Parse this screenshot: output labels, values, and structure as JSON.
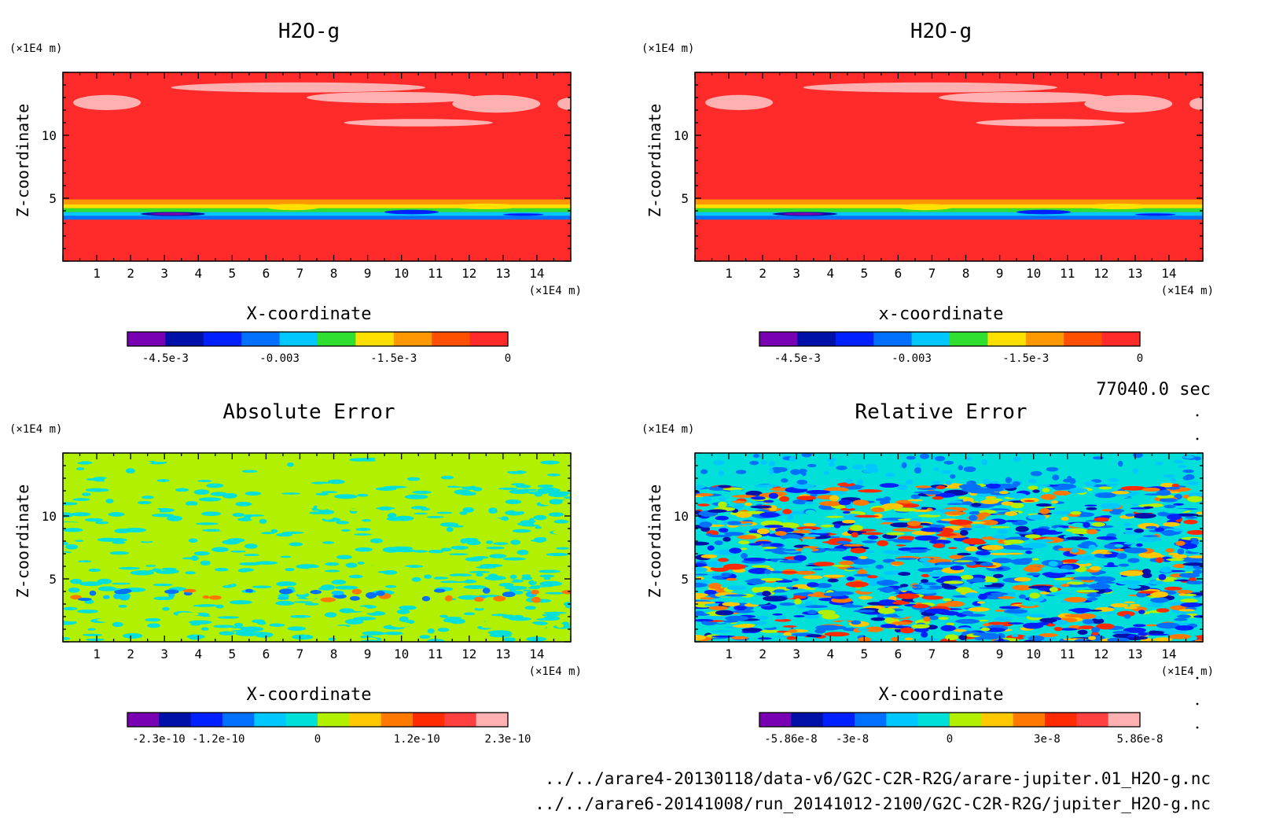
{
  "timestamp": "77040.0 sec",
  "file_lines": [
    "../../arare4-20130118/data-v6/G2C-C2R-R2G/arare-jupiter.01_H2O-g.nc",
    "../../arare6-20141008/run_20141012-2100/G2C-C2R-R2G/jupiter_H2O-g.nc"
  ],
  "colors": {
    "bg_red": "#ff2a2a",
    "pink": "#ffb0b0",
    "cyan": "#00e0d8",
    "lime": "#b0f000",
    "blue": "#0040ff"
  },
  "chart_data": [
    {
      "type": "heatmap",
      "title": "H2O-g",
      "xlabel": "X-coordinate",
      "ylabel": "Z-coordinate",
      "x_unit": "(×1E4 m)",
      "y_unit": "(×1E4 m)",
      "xlim": [
        0,
        15
      ],
      "ylim": [
        0,
        15
      ],
      "x_ticks": [
        "1",
        "2",
        "3",
        "4",
        "5",
        "6",
        "7",
        "8",
        "9",
        "10",
        "11",
        "12",
        "13",
        "14"
      ],
      "y_ticks": [
        "5",
        "10"
      ],
      "colorbar": {
        "colors": [
          "#7a00b4",
          "#0010a8",
          "#0020ff",
          "#0070ff",
          "#00c8ff",
          "#30e030",
          "#ffe000",
          "#ff9800",
          "#ff5000",
          "#ff2a2a"
        ],
        "tick_labels": [
          "-4.5e-3",
          "-0.003",
          "-1.5e-3",
          "0"
        ],
        "range": [
          -0.005,
          0
        ]
      }
    },
    {
      "type": "heatmap",
      "title": "H2O-g",
      "xlabel": "x-coordinate",
      "ylabel": "Z-coordinate",
      "x_unit": "(×1E4 m)",
      "y_unit": "(×1E4 m)",
      "xlim": [
        0,
        15
      ],
      "ylim": [
        0,
        15
      ],
      "x_ticks": [
        "1",
        "2",
        "3",
        "4",
        "5",
        "6",
        "7",
        "8",
        "9",
        "10",
        "11",
        "12",
        "13",
        "14"
      ],
      "y_ticks": [
        "5",
        "10"
      ],
      "colorbar": {
        "colors": [
          "#7a00b4",
          "#0010a8",
          "#0020ff",
          "#0070ff",
          "#00c8ff",
          "#30e030",
          "#ffe000",
          "#ff9800",
          "#ff5000",
          "#ff2a2a"
        ],
        "tick_labels": [
          "-4.5e-3",
          "-0.003",
          "-1.5e-3",
          "0"
        ],
        "range": [
          -0.005,
          0
        ]
      }
    },
    {
      "type": "heatmap",
      "title": "Absolute Error",
      "xlabel": "X-coordinate",
      "ylabel": "Z-coordinate",
      "x_unit": "(×1E4 m)",
      "y_unit": "(×1E4 m)",
      "xlim": [
        0,
        15
      ],
      "ylim": [
        0,
        15
      ],
      "x_ticks": [
        "1",
        "2",
        "3",
        "4",
        "5",
        "6",
        "7",
        "8",
        "9",
        "10",
        "11",
        "12",
        "13",
        "14"
      ],
      "y_ticks": [
        "5",
        "10"
      ],
      "colorbar": {
        "colors": [
          "#7a00b4",
          "#0010a8",
          "#0020ff",
          "#0070ff",
          "#00c8ff",
          "#00e0d8",
          "#b0f000",
          "#ffc800",
          "#ff7800",
          "#ff2a00",
          "#ff4040",
          "#ffb0b0"
        ],
        "tick_labels": [
          "-2.3e-10",
          "-1.2e-10",
          "0",
          "1.2e-10",
          "2.3e-10"
        ],
        "range": [
          -2.3e-10,
          2.3e-10
        ]
      }
    },
    {
      "type": "heatmap",
      "title": "Relative Error",
      "xlabel": "X-coordinate",
      "ylabel": "Z-coordinate",
      "x_unit": "(×1E4 m)",
      "y_unit": "(×1E4 m)",
      "xlim": [
        0,
        15
      ],
      "ylim": [
        0,
        15
      ],
      "x_ticks": [
        "1",
        "2",
        "3",
        "4",
        "5",
        "6",
        "7",
        "8",
        "9",
        "10",
        "11",
        "12",
        "13",
        "14"
      ],
      "y_ticks": [
        "5",
        "10"
      ],
      "colorbar": {
        "colors": [
          "#7a00b4",
          "#0010a8",
          "#0020ff",
          "#0070ff",
          "#00c8ff",
          "#00e0d8",
          "#b0f000",
          "#ffc800",
          "#ff7800",
          "#ff2a00",
          "#ff4040",
          "#ffb0b0"
        ],
        "tick_labels": [
          "-5.86e-8",
          "-3e-8",
          "0",
          "3e-8",
          "5.86e-8"
        ],
        "range": [
          -5.86e-08,
          5.86e-08
        ]
      }
    }
  ]
}
